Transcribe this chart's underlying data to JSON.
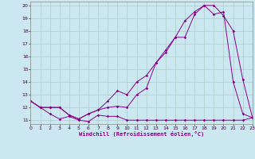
{
  "xlabel": "Windchill (Refroidissement éolien,°C)",
  "bg_color": "#cbe8f0",
  "grid_color": "#aacccc",
  "line_color": "#880088",
  "x_ticks": [
    0,
    1,
    2,
    3,
    4,
    5,
    6,
    7,
    8,
    9,
    10,
    11,
    12,
    13,
    14,
    15,
    16,
    17,
    18,
    19,
    20,
    21,
    22,
    23
  ],
  "y_ticks": [
    11,
    12,
    13,
    14,
    15,
    16,
    17,
    18,
    19,
    20
  ],
  "xlim": [
    0,
    23
  ],
  "ylim": [
    10.7,
    20.3
  ],
  "line1_x": [
    0,
    1,
    2,
    3,
    4,
    5,
    6,
    7,
    8,
    9,
    10,
    11,
    12,
    13,
    14,
    15,
    16,
    17,
    18,
    19,
    20,
    21,
    22,
    23
  ],
  "line1_y": [
    12.5,
    12.0,
    11.5,
    11.1,
    11.3,
    11.0,
    10.9,
    11.4,
    11.3,
    11.3,
    11.0,
    11.0,
    11.0,
    11.0,
    11.0,
    11.0,
    11.0,
    11.0,
    11.0,
    11.0,
    11.0,
    11.0,
    11.0,
    11.2
  ],
  "line2_x": [
    0,
    1,
    2,
    3,
    4,
    5,
    6,
    7,
    8,
    9,
    10,
    11,
    12,
    13,
    14,
    15,
    16,
    17,
    18,
    19,
    20,
    21,
    22,
    23
  ],
  "line2_y": [
    12.5,
    12.0,
    12.0,
    12.0,
    11.4,
    11.1,
    11.5,
    11.8,
    12.0,
    12.1,
    12.0,
    13.0,
    13.5,
    15.5,
    16.3,
    17.5,
    17.5,
    19.3,
    20.0,
    20.0,
    19.2,
    18.0,
    14.2,
    11.2
  ],
  "line3_x": [
    0,
    1,
    2,
    3,
    4,
    5,
    6,
    7,
    8,
    9,
    10,
    11,
    12,
    13,
    14,
    15,
    16,
    17,
    18,
    19,
    20,
    21,
    22,
    23
  ],
  "line3_y": [
    12.5,
    12.0,
    12.0,
    12.0,
    11.4,
    11.1,
    11.5,
    11.8,
    12.5,
    13.3,
    13.0,
    14.0,
    14.5,
    15.5,
    16.5,
    17.5,
    18.8,
    19.5,
    20.0,
    19.3,
    19.5,
    14.0,
    11.5,
    11.2
  ]
}
